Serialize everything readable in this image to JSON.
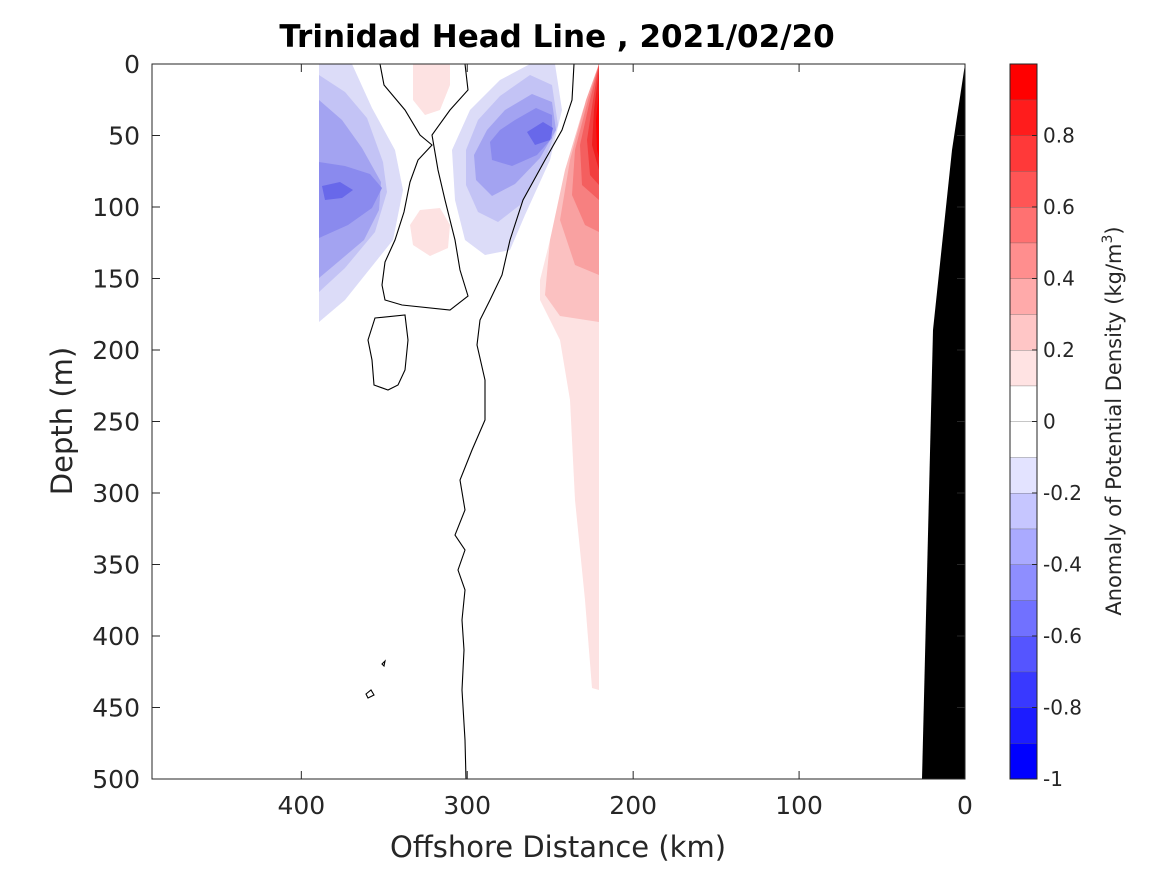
{
  "chart_data": {
    "type": "heatmap",
    "title": "Trinidad Head Line , 2021/02/20",
    "xlabel": "Offshore Distance (km)",
    "ylabel": "Depth (m)",
    "x_reversed": true,
    "y_reversed": true,
    "xlim": [
      490,
      0
    ],
    "ylim": [
      0,
      500
    ],
    "x_ticks": [
      400,
      300,
      200,
      100,
      0
    ],
    "y_ticks": [
      0,
      50,
      100,
      150,
      200,
      250,
      300,
      350,
      400,
      450,
      500
    ],
    "colorbar": {
      "label": "Anomaly of Potential Density (kg/m",
      "label_superscript": "3",
      "label_suffix": ")",
      "range": [
        -1,
        1
      ],
      "levels": [
        -1,
        -0.9,
        -0.8,
        -0.7,
        -0.6,
        -0.5,
        -0.4,
        -0.3,
        -0.2,
        -0.1,
        0,
        0.1,
        0.2,
        0.3,
        0.4,
        0.5,
        0.6,
        0.7,
        0.8,
        0.9,
        1
      ],
      "ticks": [
        "0.8",
        "0.6",
        "0.4",
        "0.2",
        "0",
        "-0.2",
        "-0.4",
        "-0.6",
        "-0.8",
        "-1"
      ],
      "tick_values": [
        0.8,
        0.6,
        0.4,
        0.2,
        0,
        -0.2,
        -0.4,
        -0.6,
        -0.8,
        -1
      ],
      "colormap": "blue-white-red",
      "low_color": "#0000ff",
      "high_color": "#ff0000",
      "mid_color": "#ffffff"
    },
    "regions": [
      {
        "name": "negative anomaly offshore",
        "x_range": [
          390,
          345
        ],
        "depth_range": [
          0,
          180
        ],
        "min_value": -0.6,
        "core": {
          "x": 380,
          "depth": 90
        }
      },
      {
        "name": "negative anomaly mid",
        "x_range": [
          305,
          245
        ],
        "depth_range": [
          0,
          130
        ],
        "min_value": -0.6,
        "core": {
          "x": 253,
          "depth": 50
        }
      },
      {
        "name": "positive anomaly nearshore",
        "x_range": [
          250,
          220
        ],
        "depth_range": [
          0,
          440
        ],
        "max_value": 0.9,
        "core": {
          "x": 221,
          "depth": 80
        }
      },
      {
        "name": "positive anomaly small surface",
        "x_range": [
          335,
          310
        ],
        "depth_range": [
          0,
          45
        ],
        "max_value": 0.2
      },
      {
        "name": "positive anomaly small subsurface",
        "x_range": [
          335,
          315
        ],
        "depth_range": [
          100,
          135
        ],
        "max_value": 0.2
      }
    ],
    "bathymetry": {
      "color": "#000000",
      "points": [
        {
          "x": 0,
          "depth": 0
        },
        {
          "x": 8,
          "depth": 60
        },
        {
          "x": 18,
          "depth": 180
        },
        {
          "x": 27,
          "depth": 500
        }
      ]
    },
    "grid": false
  }
}
